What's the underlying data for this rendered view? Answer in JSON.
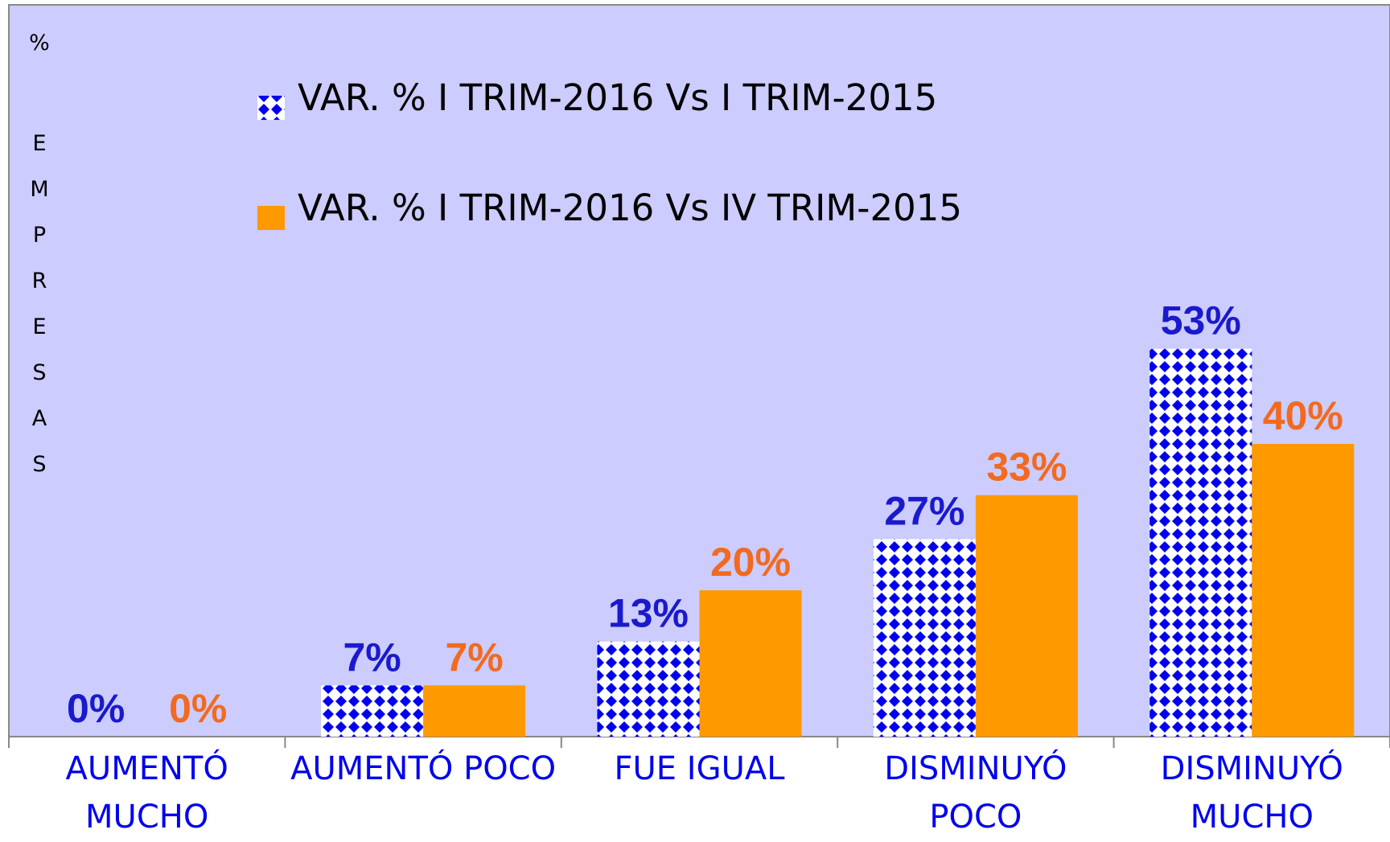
{
  "chart_data": {
    "type": "bar",
    "y_unit": "%",
    "y_label": "EMPRESAS",
    "categories": [
      "AUMENTÓ MUCHO",
      "AUMENTÓ POCO",
      "FUE IGUAL",
      "DISMINUYÓ POCO",
      "DISMINUYÓ MUCHO"
    ],
    "series": [
      {
        "name": "VAR. % I TRIM-2016 Vs I TRIM-2015",
        "color": "#0000ee",
        "label_color": "#1a1acc",
        "pattern": "diamond",
        "values": [
          0,
          7,
          13,
          27,
          53
        ],
        "value_labels": [
          "0%",
          "7%",
          "13%",
          "27%",
          "53%"
        ]
      },
      {
        "name": "VAR. % I TRIM-2016 Vs IV TRIM-2015",
        "color": "#ff9900",
        "label_color": "#f26a1f",
        "values": [
          0,
          7,
          20,
          33,
          40
        ],
        "value_labels": [
          "0%",
          "7%",
          "20%",
          "33%",
          "40%"
        ]
      }
    ],
    "ylim": [
      0,
      100
    ],
    "yticks": [],
    "plot_background": "#ccccff"
  }
}
